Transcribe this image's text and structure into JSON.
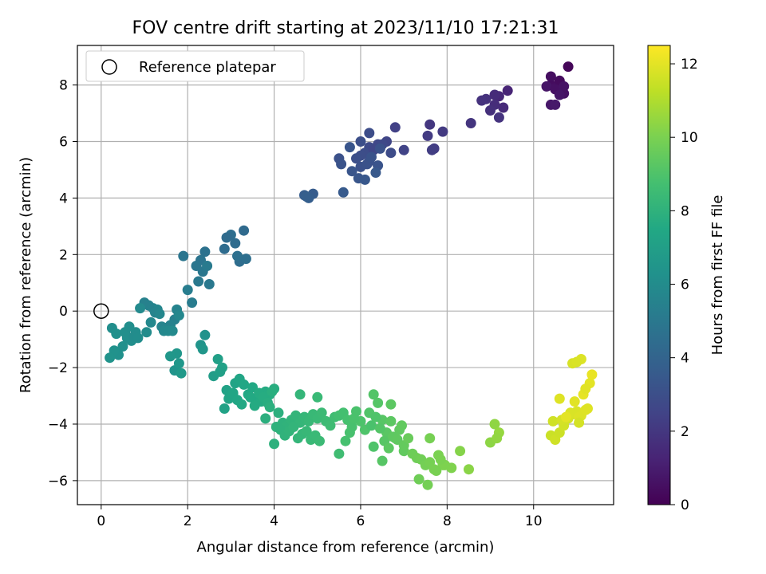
{
  "chart_data": {
    "type": "scatter",
    "title": "FOV centre drift starting at 2023/11/10 17:21:31",
    "xlabel": "Angular distance from reference (arcmin)",
    "ylabel": "Rotation from reference (arcmin)",
    "xlim": [
      -0.55,
      11.85
    ],
    "ylim": [
      -6.85,
      9.4
    ],
    "xticks": [
      0,
      2,
      4,
      6,
      8,
      10
    ],
    "yticks": [
      -6,
      -4,
      -2,
      0,
      2,
      4,
      6,
      8
    ],
    "grid": true,
    "legend": {
      "position": "top-left",
      "entries": [
        "Reference platepar"
      ]
    },
    "reference_point": {
      "x": 0,
      "y": 0
    },
    "colorbar": {
      "label": "Hours from first FF file",
      "range": [
        0,
        12.5
      ],
      "ticks": [
        0,
        2,
        4,
        6,
        8,
        10,
        12
      ],
      "colormap": "viridis"
    },
    "series": [
      {
        "x": [
          10.8,
          10.6,
          10.4,
          10.5,
          10.7,
          10.3,
          10.6,
          10.4,
          10.5,
          10.7,
          10.6,
          10.4,
          10.5,
          9.4,
          9.2,
          9.3,
          9.1,
          9.0,
          8.9,
          8.8,
          9.2,
          9.1,
          8.55,
          7.6,
          7.9,
          7.7,
          7.55,
          7.65,
          6.8,
          7.0,
          6.6,
          6.4,
          6.2,
          6.1,
          6.3,
          6.5,
          6.7,
          6.0,
          5.9,
          6.2,
          6.0,
          6.15,
          6.25,
          6.4,
          5.8,
          5.95,
          6.1,
          6.35,
          5.5,
          5.55,
          5.75,
          6.0,
          6.2,
          6.45,
          5.6,
          4.9,
          4.8,
          4.7,
          4.75,
          3.3,
          3.1,
          3.0,
          2.9,
          3.2,
          3.35,
          3.15,
          2.85,
          2.4,
          2.3,
          2.2,
          2.35,
          2.5,
          2.25,
          2.45,
          2.1,
          2.0,
          1.9,
          1.7,
          1.6,
          1.5,
          1.4,
          1.3,
          1.2,
          1.1,
          1.0,
          1.25,
          1.35,
          1.45,
          1.55,
          1.65,
          1.75,
          1.8,
          1.15,
          1.05,
          0.9,
          0.8,
          0.7,
          0.6,
          0.5,
          0.4,
          0.3,
          0.25,
          0.2,
          0.35,
          0.55,
          0.65,
          0.75,
          0.85,
          1.7,
          1.75,
          1.6,
          1.8,
          1.85,
          2.3,
          2.35,
          2.4,
          2.7,
          2.8,
          2.9,
          3.0,
          3.1,
          3.2,
          3.3,
          3.4,
          3.5,
          3.6,
          3.7,
          3.8,
          3.9,
          4.0,
          2.85,
          2.95,
          3.05,
          3.15,
          3.25,
          3.45,
          3.55,
          3.65,
          3.75,
          3.85,
          3.95,
          2.6,
          2.75,
          4.1,
          4.2,
          4.3,
          4.4,
          4.5,
          4.6,
          4.7,
          4.8,
          4.9,
          5.0,
          5.1,
          5.2,
          5.3,
          5.4,
          4.15,
          4.25,
          4.35,
          4.45,
          4.55,
          4.65,
          4.75,
          4.85,
          4.95,
          5.05,
          3.8,
          3.9,
          4.0,
          4.05,
          4.6,
          5.0,
          5.5,
          5.5,
          5.6,
          5.7,
          5.8,
          5.9,
          6.0,
          6.1,
          6.2,
          6.3,
          6.4,
          6.5,
          6.6,
          6.7,
          6.8,
          6.9,
          7.0,
          6.25,
          6.35,
          6.45,
          6.55,
          6.65,
          6.75,
          6.85,
          6.95,
          6.3,
          6.5,
          6.7,
          5.65,
          5.75,
          5.85,
          7.0,
          7.1,
          7.2,
          7.3,
          7.4,
          7.5,
          7.6,
          7.7,
          7.8,
          7.9,
          8.1,
          8.3,
          8.5,
          7.35,
          7.55,
          7.75,
          7.95,
          7.6,
          7.85,
          9.1,
          9.2,
          9.0,
          9.15,
          10.4,
          10.5,
          10.6,
          10.7,
          10.8,
          10.9,
          11.0,
          11.1,
          11.2,
          10.45,
          10.65,
          10.85,
          11.05,
          11.25,
          11.3,
          10.95,
          11.15,
          11.35,
          11.1,
          11.2,
          10.9,
          11.0,
          10.6,
          10.75,
          11.05
        ],
        "y": [
          8.65,
          8.1,
          8.0,
          7.9,
          7.7,
          7.95,
          8.15,
          8.3,
          7.85,
          7.95,
          7.65,
          7.3,
          7.3,
          7.8,
          7.6,
          7.2,
          7.3,
          7.1,
          7.5,
          7.45,
          6.85,
          7.65,
          6.65,
          6.6,
          6.35,
          5.75,
          6.2,
          5.7,
          6.5,
          5.7,
          6.0,
          5.9,
          5.8,
          5.6,
          5.7,
          5.9,
          5.6,
          5.5,
          5.4,
          5.3,
          5.1,
          5.2,
          5.45,
          5.15,
          4.95,
          4.7,
          4.65,
          4.9,
          5.4,
          5.2,
          5.8,
          6.0,
          6.3,
          5.75,
          4.2,
          4.15,
          4.0,
          4.1,
          4.05,
          2.85,
          2.4,
          2.7,
          2.6,
          1.75,
          1.85,
          1.95,
          2.2,
          2.1,
          1.8,
          1.6,
          1.4,
          0.95,
          1.05,
          1.6,
          0.3,
          0.75,
          1.95,
          -0.3,
          -0.5,
          -0.6,
          -0.55,
          0.05,
          0.1,
          0.2,
          0.3,
          -0.05,
          -0.1,
          -0.7,
          -0.7,
          -0.7,
          0.05,
          -0.15,
          -0.4,
          -0.75,
          0.1,
          -0.75,
          -1.05,
          -0.95,
          -1.25,
          -1.55,
          -1.4,
          -0.6,
          -1.65,
          -0.8,
          -0.75,
          -0.55,
          -0.9,
          -0.95,
          -2.1,
          -1.5,
          -1.6,
          -1.85,
          -2.2,
          -1.2,
          -1.35,
          -0.85,
          -1.7,
          -2.0,
          -2.8,
          -3.0,
          -2.55,
          -2.4,
          -2.6,
          -2.95,
          -2.7,
          -3.1,
          -3.2,
          -2.85,
          -2.95,
          -2.75,
          -3.45,
          -3.1,
          -2.9,
          -3.15,
          -3.3,
          -3.05,
          -3.35,
          -2.9,
          -3.05,
          -3.25,
          -2.85,
          -2.3,
          -2.15,
          -3.6,
          -3.95,
          -4.05,
          -3.85,
          -3.7,
          -3.95,
          -3.75,
          -3.9,
          -3.65,
          -3.8,
          -3.6,
          -3.9,
          -4.05,
          -3.75,
          -4.2,
          -4.4,
          -4.25,
          -4.1,
          -4.5,
          -4.35,
          -4.25,
          -4.55,
          -4.4,
          -4.6,
          -3.8,
          -3.4,
          -4.7,
          -4.1,
          -2.95,
          -3.05,
          -5.05,
          -3.7,
          -3.6,
          -3.85,
          -4.1,
          -3.55,
          -3.9,
          -4.2,
          -3.6,
          -2.95,
          -3.25,
          -3.85,
          -4.3,
          -3.9,
          -4.5,
          -4.2,
          -4.95,
          -4.05,
          -3.75,
          -4.15,
          -4.6,
          -4.85,
          -4.45,
          -4.55,
          -4.05,
          -4.8,
          -5.3,
          -3.3,
          -4.6,
          -4.3,
          -3.8,
          -4.75,
          -4.5,
          -5.05,
          -5.2,
          -5.25,
          -5.45,
          -5.35,
          -5.6,
          -5.1,
          -5.45,
          -5.55,
          -4.95,
          -5.6,
          -5.95,
          -6.15,
          -5.65,
          -5.45,
          -4.5,
          -5.25,
          -4.0,
          -4.3,
          -4.65,
          -4.5,
          -4.4,
          -4.55,
          -4.3,
          -4.05,
          -3.8,
          -3.65,
          -3.55,
          -3.7,
          -3.5,
          -3.9,
          -3.85,
          -3.6,
          -3.75,
          -3.45,
          -2.55,
          -3.2,
          -2.95,
          -2.25,
          -1.7,
          -2.75,
          -1.85,
          -1.8,
          -3.1,
          -3.75,
          -3.95
        ],
        "hours": [
          0.2,
          0.3,
          0.4,
          0.5,
          0.6,
          0.7,
          0.35,
          0.45,
          0.55,
          0.65,
          0.75,
          0.8,
          0.85,
          1.3,
          1.4,
          1.5,
          1.6,
          1.7,
          1.75,
          1.8,
          1.85,
          1.55,
          1.9,
          2.0,
          2.1,
          2.2,
          2.15,
          2.25,
          2.4,
          2.5,
          2.6,
          2.7,
          2.8,
          2.9,
          2.65,
          2.75,
          2.85,
          2.95,
          3.0,
          3.05,
          3.1,
          3.15,
          3.2,
          3.25,
          3.3,
          3.35,
          3.4,
          3.45,
          3.1,
          3.2,
          3.3,
          3.0,
          2.9,
          3.15,
          3.5,
          3.6,
          3.7,
          3.65,
          3.75,
          4.3,
          4.4,
          4.5,
          4.35,
          4.45,
          4.55,
          4.6,
          4.4,
          4.7,
          4.8,
          4.9,
          4.95,
          5.0,
          5.05,
          5.1,
          5.2,
          5.25,
          4.85,
          5.4,
          5.5,
          5.55,
          5.6,
          5.7,
          5.65,
          5.5,
          5.45,
          5.6,
          5.75,
          5.8,
          5.85,
          5.9,
          5.55,
          5.75,
          5.8,
          6.0,
          5.9,
          6.05,
          6.1,
          6.15,
          6.2,
          6.25,
          6.3,
          6.1,
          6.35,
          6.2,
          6.15,
          6.1,
          6.0,
          6.05,
          6.4,
          6.5,
          6.55,
          6.6,
          6.7,
          6.4,
          6.5,
          6.3,
          7.0,
          7.1,
          7.2,
          7.3,
          7.25,
          7.35,
          7.4,
          7.45,
          7.5,
          7.55,
          7.6,
          7.65,
          7.7,
          7.75,
          7.15,
          7.3,
          7.35,
          7.4,
          7.5,
          7.55,
          7.6,
          7.65,
          7.7,
          7.75,
          7.8,
          6.9,
          7.0,
          7.9,
          8.0,
          8.05,
          8.1,
          8.15,
          8.2,
          8.25,
          8.3,
          8.35,
          8.4,
          8.45,
          8.5,
          8.55,
          8.6,
          8.0,
          8.05,
          8.1,
          8.15,
          8.2,
          8.25,
          8.3,
          8.35,
          8.4,
          8.45,
          7.85,
          7.9,
          7.95,
          8.0,
          8.2,
          8.4,
          8.6,
          8.7,
          8.75,
          8.8,
          8.85,
          8.9,
          8.95,
          9.0,
          9.05,
          9.1,
          9.15,
          9.2,
          9.25,
          9.3,
          9.35,
          9.4,
          9.45,
          8.9,
          9.0,
          9.1,
          9.2,
          9.3,
          9.35,
          9.4,
          9.45,
          9.0,
          9.2,
          9.3,
          8.8,
          8.85,
          8.9,
          9.5,
          9.6,
          9.7,
          9.75,
          9.8,
          9.85,
          9.9,
          9.95,
          10.0,
          10.05,
          10.1,
          10.2,
          10.3,
          9.75,
          9.85,
          9.95,
          10.05,
          9.9,
          10.0,
          10.4,
          10.5,
          10.35,
          10.45,
          11.5,
          11.6,
          11.55,
          11.65,
          11.7,
          11.75,
          11.8,
          11.85,
          11.9,
          11.6,
          11.7,
          11.8,
          11.85,
          11.9,
          12.0,
          11.95,
          12.05,
          12.1,
          11.85,
          11.95,
          11.75,
          11.8,
          11.9,
          12.0,
          11.7
        ]
      }
    ]
  }
}
